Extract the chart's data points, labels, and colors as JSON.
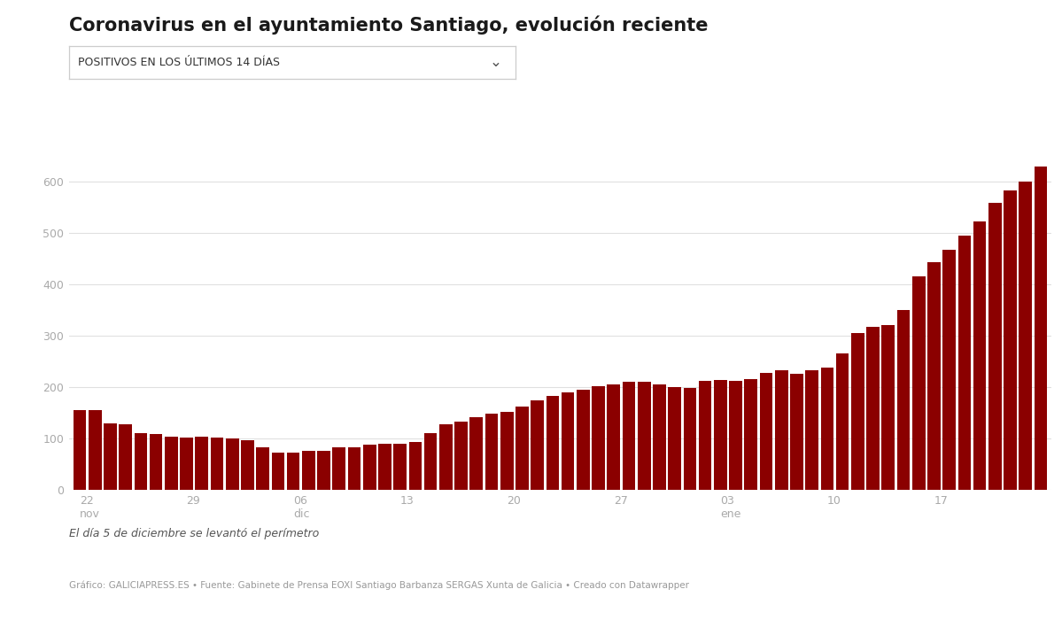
{
  "title": "Coronavirus en el ayuntamiento Santiago, evolución reciente",
  "dropdown_label": "POSITIVOS EN LOS ÚLTIMOS 14 DÍAS",
  "bar_color": "#8B0000",
  "background_color": "#ffffff",
  "grid_color": "#e0e0e0",
  "tick_color": "#aaaaaa",
  "note_italic": "El día 5 de diciembre se levantó el perímetro",
  "footer": "Gráfico: GALICIAPRESS.ES • Fuente: Gabinete de Prensa EOXI Santiago Barbanza SERGAS Xunta de Galicia • Creado con Datawrapper",
  "yticks": [
    0,
    100,
    200,
    300,
    400,
    500,
    600
  ],
  "ylim": [
    0,
    660
  ],
  "xtick_labels": [
    "22\nnov",
    "29",
    "06\ndic",
    "13",
    "20",
    "27",
    "03\nene",
    "10",
    "17"
  ],
  "xtick_positions": [
    0,
    7,
    14,
    21,
    28,
    35,
    42,
    49,
    56
  ],
  "values": [
    155,
    155,
    130,
    128,
    110,
    108,
    103,
    102,
    103,
    101,
    100,
    97,
    82,
    73,
    72,
    76,
    76,
    82,
    82,
    88,
    90,
    90,
    93,
    110,
    128,
    132,
    142,
    148,
    152,
    162,
    175,
    182,
    190,
    195,
    202,
    205,
    210,
    210,
    205,
    200,
    198,
    212,
    213,
    212,
    215,
    228,
    232,
    225,
    232,
    238,
    265,
    305,
    318,
    320,
    350,
    415,
    443,
    468,
    495,
    522,
    558,
    583,
    600,
    630
  ]
}
